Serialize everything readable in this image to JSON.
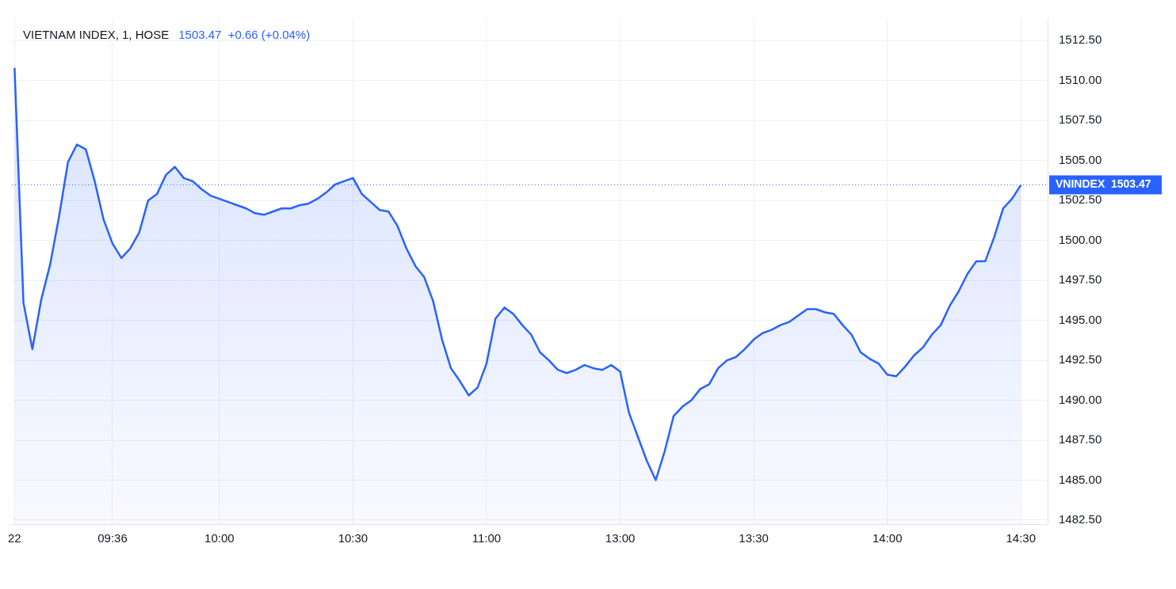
{
  "chart_data": {
    "type": "area",
    "title": "VIETNAM INDEX, 1, HOSE",
    "subtitle": "1503.47  +0.66 (+0.04%)",
    "categories": [
      "22",
      null,
      null,
      null,
      null,
      null,
      null,
      null,
      null,
      null,
      null,
      "09:36",
      null,
      null,
      null,
      null,
      null,
      null,
      null,
      null,
      null,
      null,
      null,
      "10:00",
      null,
      null,
      null,
      null,
      null,
      null,
      null,
      null,
      null,
      null,
      null,
      null,
      null,
      null,
      "10:30",
      null,
      null,
      null,
      null,
      null,
      null,
      null,
      null,
      null,
      null,
      null,
      null,
      null,
      null,
      "11:00",
      null,
      null,
      null,
      null,
      null,
      null,
      null,
      null,
      null,
      null,
      null,
      null,
      null,
      null,
      "13:00",
      null,
      null,
      null,
      null,
      null,
      null,
      null,
      null,
      null,
      null,
      null,
      null,
      null,
      null,
      "13:30",
      null,
      null,
      null,
      null,
      null,
      null,
      null,
      null,
      null,
      null,
      null,
      null,
      null,
      null,
      "14:00",
      null,
      null,
      null,
      null,
      null,
      null,
      null,
      null,
      null,
      null,
      null,
      null,
      null,
      null,
      "14:30"
    ],
    "series": [
      {
        "color": "#2962ff",
        "values": [
          1510.8,
          1496.1,
          1493.2,
          1496.3,
          1498.5,
          1501.5,
          1504.9,
          1506.0,
          1505.7,
          1503.7,
          1501.3,
          1499.8,
          1498.9,
          1499.5,
          1500.5,
          1502.5,
          1502.9,
          1504.1,
          1504.6,
          1503.9,
          1503.7,
          1503.2,
          1502.8,
          1502.6,
          1502.4,
          1502.2,
          1502.0,
          1501.7,
          1501.6,
          1501.8,
          1502.0,
          1502.0,
          1502.2,
          1502.3,
          1502.6,
          1503.0,
          1503.5,
          1503.7,
          1503.9,
          1502.9,
          1502.4,
          1501.9,
          1501.8,
          1500.9,
          1499.5,
          1498.4,
          1497.7,
          1496.2,
          1493.8,
          1492.0,
          1491.2,
          1490.3,
          1490.8,
          1492.3,
          1495.1,
          1495.8,
          1495.4,
          1494.7,
          1494.1,
          1493.0,
          1492.5,
          1491.9,
          1491.7,
          1491.9,
          1492.2,
          1492.0,
          1491.9,
          1492.2,
          1491.8,
          1489.2,
          1487.7,
          1486.2,
          1485.0,
          1486.8,
          1489.0,
          1489.6,
          1490.0,
          1490.7,
          1491.0,
          1492.0,
          1492.5,
          1492.7,
          1493.2,
          1493.8,
          1494.2,
          1494.4,
          1494.7,
          1494.9,
          1495.3,
          1495.7,
          1495.7,
          1495.5,
          1495.4,
          1494.7,
          1494.1,
          1493.0,
          1492.6,
          1492.3,
          1491.6,
          1491.5,
          1492.1,
          1492.8,
          1493.3,
          1494.1,
          1494.7,
          1495.9,
          1496.8,
          1497.9,
          1498.7,
          1498.7,
          1500.2,
          1502.0,
          1502.6,
          1503.47
        ]
      }
    ],
    "ylim": [
      1482.25,
      1513.9
    ],
    "yticks": [
      {
        "value": 1482.5,
        "label": "1482.50"
      },
      {
        "value": 1485,
        "label": "1485.00"
      },
      {
        "value": 1487.5,
        "label": "1487.50"
      },
      {
        "value": 1490,
        "label": "1490.00"
      },
      {
        "value": 1492.5,
        "label": "1492.50"
      },
      {
        "value": 1495,
        "label": "1495.00"
      },
      {
        "value": 1497.5,
        "label": "1497.50"
      },
      {
        "value": 1500,
        "label": "1500.00"
      },
      {
        "value": 1502.5,
        "label": "1502.50"
      },
      {
        "value": 1505,
        "label": "1505.00"
      },
      {
        "value": 1507.5,
        "label": "1507.50"
      },
      {
        "value": 1510,
        "label": "1510.00"
      },
      {
        "value": 1512.5,
        "label": "1512.50"
      }
    ],
    "ref_lines": [
      {
        "axis": "y",
        "value": 1503.47,
        "label": "VNINDEX  1503.47",
        "color": "#2962ff",
        "line_style": "dotted"
      }
    ],
    "grid": true,
    "legend": false
  }
}
